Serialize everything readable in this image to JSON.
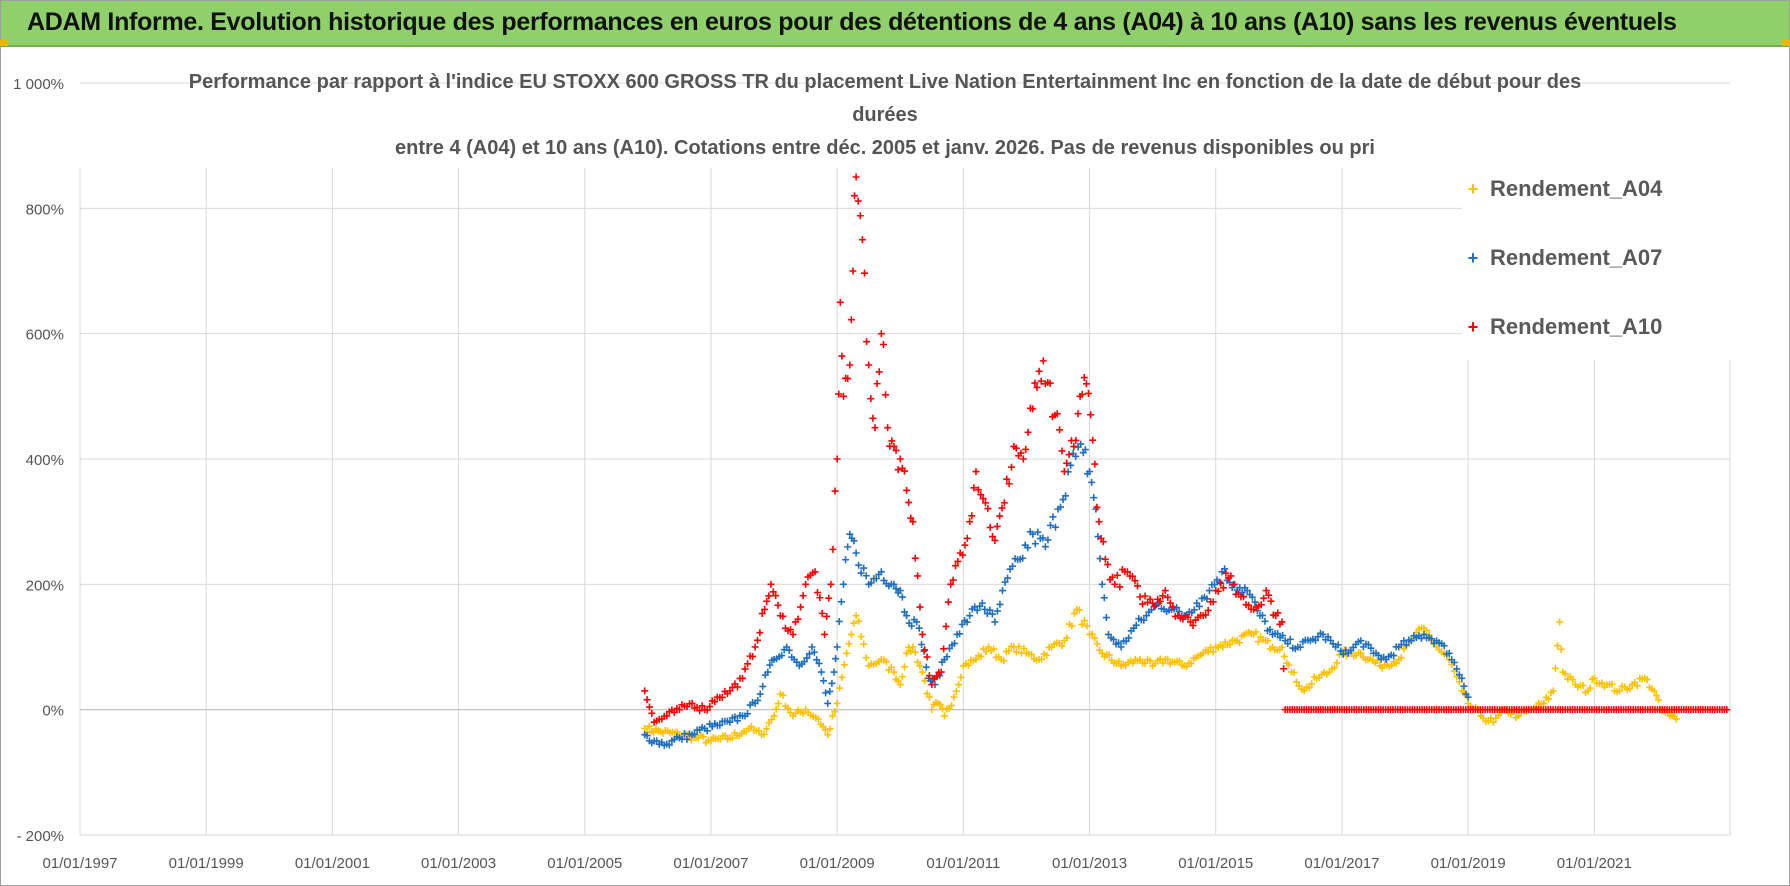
{
  "banner": {
    "title": "ADAM Informe. Evolution historique des performances en euros pour des détentions de 4 ans (A04) à 10 ans (A10) sans les revenus éventuels"
  },
  "colors": {
    "banner": "#8fd06a",
    "A04": "#ffc000",
    "A07": "#1f6fbf",
    "A10": "#ff0000",
    "grid": "#d9d9d9"
  },
  "chart_data": {
    "type": "scatter",
    "title_lines": [
      "Performance par rapport à l'indice EU STOXX 600 GROSS TR  du placement Live Nation Entertainment Inc en fonction de la date de début pour des durées",
      "entre 4 (A04) et 10 ans (A10). Cotations entre déc. 2005 et janv. 2026. Pas de revenus disponibles ou pri"
    ],
    "x_tick_labels": [
      "01/01/1997",
      "01/01/1999",
      "01/01/2001",
      "01/01/2003",
      "01/01/2005",
      "01/01/2007",
      "01/01/2009",
      "01/01/2011",
      "01/01/2013",
      "01/01/2015",
      "01/01/2017",
      "01/01/2019",
      "01/01/2021"
    ],
    "xlim": [
      1997.0,
      2023.15
    ],
    "y_tick_labels": [
      "1 000%",
      "800%",
      "600%",
      "400%",
      "200%",
      "0%",
      "- 200%"
    ],
    "y_tick_values": [
      1000,
      800,
      600,
      400,
      200,
      0,
      -200
    ],
    "ylim": [
      -200,
      1000
    ],
    "legend_position": "top-right",
    "series": [
      {
        "name": "Rendement_A04",
        "key": "A04",
        "points": [
          [
            2005.95,
            -30
          ],
          [
            2006.2,
            -35
          ],
          [
            2006.5,
            -40
          ],
          [
            2006.8,
            -45
          ],
          [
            2007.0,
            -50
          ],
          [
            2007.3,
            -45
          ],
          [
            2007.6,
            -30
          ],
          [
            2007.8,
            -40
          ],
          [
            2008.0,
            -10
          ],
          [
            2008.1,
            25
          ],
          [
            2008.3,
            -10
          ],
          [
            2008.5,
            0
          ],
          [
            2008.7,
            -15
          ],
          [
            2008.85,
            -40
          ],
          [
            2009.0,
            10
          ],
          [
            2009.15,
            90
          ],
          [
            2009.3,
            150
          ],
          [
            2009.5,
            70
          ],
          [
            2009.7,
            80
          ],
          [
            2009.9,
            60
          ],
          [
            2010.0,
            40
          ],
          [
            2010.1,
            90
          ],
          [
            2010.2,
            100
          ],
          [
            2010.35,
            60
          ],
          [
            2010.5,
            0
          ],
          [
            2010.6,
            10
          ],
          [
            2010.7,
            -10
          ],
          [
            2010.85,
            20
          ],
          [
            2011.0,
            70
          ],
          [
            2011.2,
            80
          ],
          [
            2011.4,
            100
          ],
          [
            2011.6,
            80
          ],
          [
            2011.8,
            100
          ],
          [
            2012.0,
            90
          ],
          [
            2012.2,
            80
          ],
          [
            2012.4,
            100
          ],
          [
            2012.6,
            110
          ],
          [
            2012.8,
            160
          ],
          [
            2013.0,
            120
          ],
          [
            2013.2,
            90
          ],
          [
            2013.5,
            70
          ],
          [
            2013.8,
            80
          ],
          [
            2014.0,
            70
          ],
          [
            2014.2,
            80
          ],
          [
            2014.5,
            70
          ],
          [
            2014.8,
            90
          ],
          [
            2015.0,
            100
          ],
          [
            2015.3,
            110
          ],
          [
            2015.6,
            120
          ],
          [
            2015.9,
            100
          ],
          [
            2016.05,
            100
          ],
          [
            2016.2,
            60
          ],
          [
            2016.4,
            30
          ],
          [
            2016.6,
            50
          ],
          [
            2016.8,
            60
          ],
          [
            2017.0,
            90
          ],
          [
            2017.3,
            90
          ],
          [
            2017.6,
            70
          ],
          [
            2017.9,
            80
          ],
          [
            2018.1,
            110
          ],
          [
            2018.3,
            130
          ],
          [
            2018.5,
            100
          ],
          [
            2018.7,
            80
          ],
          [
            2018.9,
            30
          ],
          [
            2019.0,
            10
          ],
          [
            2019.2,
            -10
          ],
          [
            2019.4,
            -20
          ],
          [
            2019.6,
            0
          ],
          [
            2019.8,
            -10
          ],
          [
            2020.0,
            0
          ],
          [
            2020.2,
            10
          ],
          [
            2020.35,
            30
          ],
          [
            2020.45,
            140
          ],
          [
            2020.5,
            60
          ],
          [
            2020.7,
            40
          ],
          [
            2020.9,
            30
          ],
          [
            2021.0,
            50
          ],
          [
            2021.2,
            40
          ],
          [
            2021.4,
            30
          ],
          [
            2021.6,
            40
          ],
          [
            2021.8,
            50
          ],
          [
            2021.95,
            30
          ],
          [
            2022.05,
            0
          ],
          [
            2022.2,
            -10
          ],
          [
            2022.3,
            -15
          ]
        ]
      },
      {
        "name": "Rendement_A07",
        "key": "A07",
        "points": [
          [
            2005.95,
            -40
          ],
          [
            2006.1,
            -50
          ],
          [
            2006.3,
            -55
          ],
          [
            2006.5,
            -45
          ],
          [
            2006.7,
            -40
          ],
          [
            2006.9,
            -30
          ],
          [
            2007.1,
            -25
          ],
          [
            2007.3,
            -20
          ],
          [
            2007.5,
            -10
          ],
          [
            2007.7,
            10
          ],
          [
            2007.9,
            60
          ],
          [
            2008.0,
            80
          ],
          [
            2008.2,
            100
          ],
          [
            2008.4,
            70
          ],
          [
            2008.6,
            100
          ],
          [
            2008.75,
            60
          ],
          [
            2008.85,
            10
          ],
          [
            2008.95,
            60
          ],
          [
            2009.0,
            100
          ],
          [
            2009.1,
            200
          ],
          [
            2009.2,
            280
          ],
          [
            2009.3,
            250
          ],
          [
            2009.5,
            200
          ],
          [
            2009.7,
            220
          ],
          [
            2009.9,
            200
          ],
          [
            2010.0,
            190
          ],
          [
            2010.1,
            150
          ],
          [
            2010.3,
            130
          ],
          [
            2010.45,
            50
          ],
          [
            2010.55,
            40
          ],
          [
            2010.7,
            80
          ],
          [
            2010.9,
            120
          ],
          [
            2011.1,
            150
          ],
          [
            2011.3,
            170
          ],
          [
            2011.5,
            140
          ],
          [
            2011.7,
            210
          ],
          [
            2011.9,
            240
          ],
          [
            2012.1,
            280
          ],
          [
            2012.3,
            260
          ],
          [
            2012.5,
            320
          ],
          [
            2012.7,
            390
          ],
          [
            2012.9,
            410
          ],
          [
            2013.0,
            380
          ],
          [
            2013.1,
            320
          ],
          [
            2013.2,
            200
          ],
          [
            2013.3,
            120
          ],
          [
            2013.5,
            100
          ],
          [
            2013.7,
            130
          ],
          [
            2013.9,
            150
          ],
          [
            2014.1,
            170
          ],
          [
            2014.3,
            160
          ],
          [
            2014.5,
            150
          ],
          [
            2014.7,
            170
          ],
          [
            2014.9,
            190
          ],
          [
            2015.1,
            220
          ],
          [
            2015.3,
            200
          ],
          [
            2015.5,
            190
          ],
          [
            2015.7,
            150
          ],
          [
            2015.9,
            120
          ],
          [
            2016.1,
            110
          ],
          [
            2016.3,
            100
          ],
          [
            2016.5,
            110
          ],
          [
            2016.7,
            120
          ],
          [
            2016.9,
            100
          ],
          [
            2017.1,
            90
          ],
          [
            2017.3,
            110
          ],
          [
            2017.5,
            90
          ],
          [
            2017.7,
            80
          ],
          [
            2017.9,
            100
          ],
          [
            2018.1,
            110
          ],
          [
            2018.3,
            120
          ],
          [
            2018.5,
            110
          ],
          [
            2018.7,
            90
          ],
          [
            2018.9,
            50
          ],
          [
            2019.0,
            20
          ]
        ]
      },
      {
        "name": "Rendement_A10",
        "key": "A10",
        "points": [
          [
            2005.95,
            30
          ],
          [
            2006.1,
            -20
          ],
          [
            2006.3,
            -10
          ],
          [
            2006.5,
            0
          ],
          [
            2006.7,
            10
          ],
          [
            2006.9,
            0
          ],
          [
            2007.1,
            20
          ],
          [
            2007.3,
            30
          ],
          [
            2007.5,
            50
          ],
          [
            2007.7,
            100
          ],
          [
            2007.85,
            160
          ],
          [
            2007.95,
            200
          ],
          [
            2008.1,
            150
          ],
          [
            2008.3,
            120
          ],
          [
            2008.5,
            200
          ],
          [
            2008.65,
            220
          ],
          [
            2008.8,
            120
          ],
          [
            2008.9,
            200
          ],
          [
            2009.0,
            400
          ],
          [
            2009.05,
            650
          ],
          [
            2009.1,
            500
          ],
          [
            2009.2,
            550
          ],
          [
            2009.25,
            700
          ],
          [
            2009.3,
            850
          ],
          [
            2009.4,
            750
          ],
          [
            2009.5,
            550
          ],
          [
            2009.6,
            450
          ],
          [
            2009.7,
            600
          ],
          [
            2009.8,
            450
          ],
          [
            2009.9,
            420
          ],
          [
            2010.0,
            400
          ],
          [
            2010.1,
            350
          ],
          [
            2010.2,
            300
          ],
          [
            2010.35,
            120
          ],
          [
            2010.5,
            40
          ],
          [
            2010.65,
            60
          ],
          [
            2010.8,
            200
          ],
          [
            2010.95,
            250
          ],
          [
            2011.1,
            300
          ],
          [
            2011.2,
            380
          ],
          [
            2011.35,
            330
          ],
          [
            2011.5,
            270
          ],
          [
            2011.65,
            330
          ],
          [
            2011.8,
            420
          ],
          [
            2011.95,
            400
          ],
          [
            2012.1,
            480
          ],
          [
            2012.2,
            540
          ],
          [
            2012.3,
            520
          ],
          [
            2012.45,
            470
          ],
          [
            2012.6,
            380
          ],
          [
            2012.75,
            420
          ],
          [
            2012.85,
            500
          ],
          [
            2012.95,
            520
          ],
          [
            2013.05,
            430
          ],
          [
            2013.15,
            300
          ],
          [
            2013.25,
            240
          ],
          [
            2013.4,
            200
          ],
          [
            2013.6,
            220
          ],
          [
            2013.8,
            180
          ],
          [
            2014.0,
            170
          ],
          [
            2014.2,
            190
          ],
          [
            2014.4,
            150
          ],
          [
            2014.6,
            140
          ],
          [
            2014.8,
            150
          ],
          [
            2015.0,
            190
          ],
          [
            2015.2,
            210
          ],
          [
            2015.4,
            180
          ],
          [
            2015.6,
            160
          ],
          [
            2015.8,
            190
          ],
          [
            2015.95,
            150
          ],
          [
            2016.05,
            140
          ],
          [
            2016.1,
            0
          ],
          [
            2017.0,
            0
          ],
          [
            2018.0,
            0
          ],
          [
            2019.0,
            0
          ],
          [
            2020.0,
            0
          ],
          [
            2021.0,
            0
          ],
          [
            2022.0,
            0
          ],
          [
            2023.1,
            0
          ]
        ]
      }
    ]
  },
  "legend": {
    "items": [
      {
        "label": "Rendement_A04",
        "marker": "+"
      },
      {
        "label": "Rendement_A07",
        "marker": "+"
      },
      {
        "label": "Rendement_A10",
        "marker": "+"
      }
    ]
  }
}
